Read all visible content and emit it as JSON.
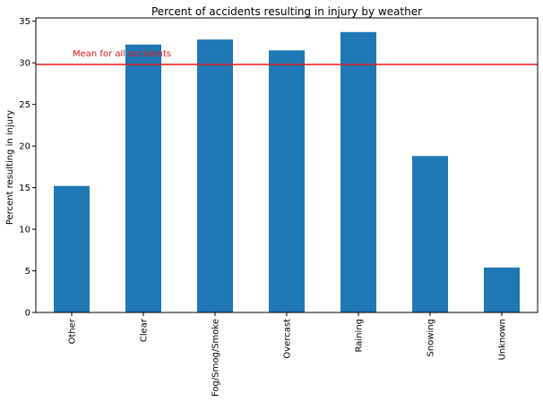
{
  "chart_data": {
    "type": "bar",
    "title": "Percent of accidents resulting in injury by weather",
    "xlabel": "",
    "ylabel": "Percent resulting in injury",
    "categories": [
      "Other",
      "Clear",
      "Fog/Smog/Smoke",
      "Overcast",
      "Raining",
      "Snowing",
      "Unknown"
    ],
    "values": [
      15.2,
      32.2,
      32.8,
      31.5,
      33.7,
      18.8,
      5.4
    ],
    "ylim": [
      0,
      35.4
    ],
    "yticks": [
      0,
      5,
      10,
      15,
      20,
      25,
      30,
      35
    ],
    "bar_color": "#1f77b4",
    "reference_line": {
      "label": "Mean for all accidents",
      "value": 29.8,
      "color": "#e41a1c"
    },
    "grid": false,
    "legend": "none"
  }
}
